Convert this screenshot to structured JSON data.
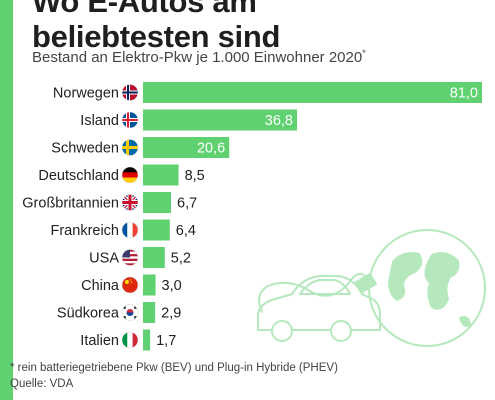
{
  "header": {
    "title_lines": [
      "Wo E-Autos am",
      "beliebtesten sind"
    ],
    "subtitle": "Bestand an Elektro-Pkw je 1.000 Einwohner 2020",
    "subtitle_mark": "*"
  },
  "footer": {
    "footnote": "* rein batteriegetriebene Pkw (BEV) und Plug-in Hybride (PHEV)",
    "source": "Quelle: VDA"
  },
  "colors": {
    "accent": "#5fd170",
    "bar": "#5fd170",
    "illustration": "#b5e8bc"
  },
  "illustration": "electric-car-charging-from-globe",
  "chart_data": {
    "type": "bar",
    "orientation": "horizontal",
    "categories": [
      "Norwegen",
      "Island",
      "Schweden",
      "Deutschland",
      "Großbritannien",
      "Frankreich",
      "USA",
      "China",
      "Südkorea",
      "Italien"
    ],
    "flags": [
      "norway-flag-icon",
      "iceland-flag-icon",
      "sweden-flag-icon",
      "germany-flag-icon",
      "uk-flag-icon",
      "france-flag-icon",
      "usa-flag-icon",
      "china-flag-icon",
      "south-korea-flag-icon",
      "italy-flag-icon"
    ],
    "values": [
      81.0,
      36.8,
      20.6,
      8.5,
      6.7,
      6.4,
      5.2,
      3.0,
      2.9,
      1.7
    ],
    "value_labels": [
      "81,0",
      "36,8",
      "20,6",
      "8,5",
      "6,7",
      "6,4",
      "5,2",
      "3,0",
      "2,9",
      "1,7"
    ],
    "xlim": [
      0,
      81.0
    ],
    "grid": false,
    "legend": "none"
  }
}
